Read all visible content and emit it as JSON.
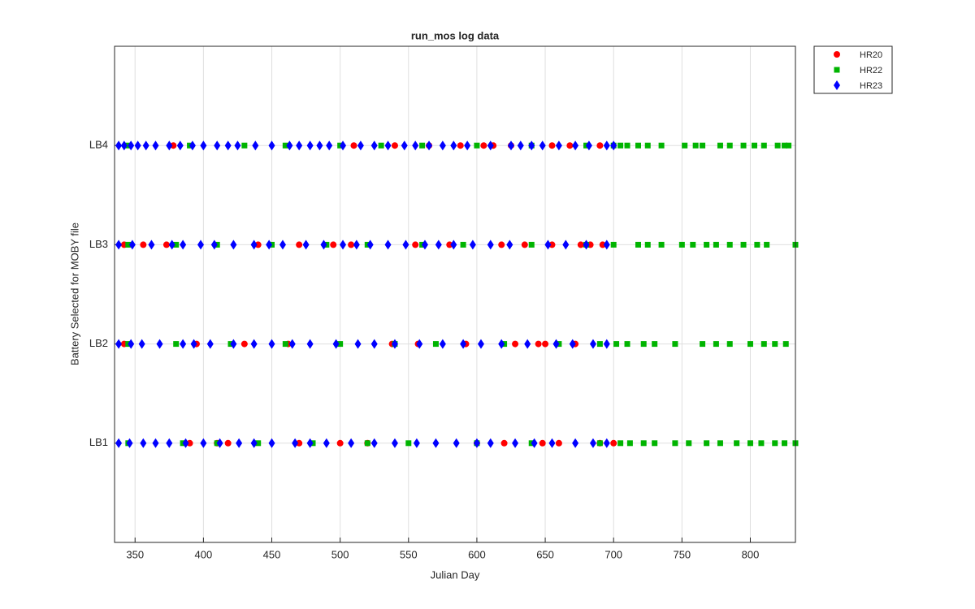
{
  "chart_data": {
    "type": "scatter",
    "title": "run_mos log data",
    "xlabel": "Julian Day",
    "ylabel": "Battery Selected for MOBY file",
    "xlim": [
      335,
      833
    ],
    "xticks": [
      350,
      400,
      450,
      500,
      550,
      600,
      650,
      700,
      750,
      800
    ],
    "ylim": [
      0,
      5
    ],
    "yticks": [
      {
        "value": 1,
        "label": "LB1"
      },
      {
        "value": 2,
        "label": "LB2"
      },
      {
        "value": 3,
        "label": "LB3"
      },
      {
        "value": 4,
        "label": "LB4"
      }
    ],
    "grid": true,
    "legend": "northeastoutside",
    "series": [
      {
        "name": "HR20",
        "color": "#ff0000",
        "marker": "circle",
        "x": [
          378,
          510,
          540,
          565,
          588,
          605,
          612,
          625,
          655,
          668,
          690,
          342,
          356,
          373,
          440,
          470,
          495,
          508,
          555,
          580,
          618,
          635,
          655,
          676,
          683,
          692,
          342,
          395,
          430,
          462,
          538,
          557,
          592,
          628,
          645,
          650,
          672,
          390,
          410,
          418,
          470,
          500,
          520,
          600,
          620,
          648,
          660,
          690,
          700
        ],
        "values": [
          4,
          4,
          4,
          4,
          4,
          4,
          4,
          4,
          4,
          4,
          4,
          3,
          3,
          3,
          3,
          3,
          3,
          3,
          3,
          3,
          3,
          3,
          3,
          3,
          3,
          3,
          2,
          2,
          2,
          2,
          2,
          2,
          2,
          2,
          2,
          2,
          2,
          1,
          1,
          1,
          1,
          1,
          1,
          1,
          1,
          1,
          1,
          1,
          1
        ]
      },
      {
        "name": "HR22",
        "color": "#00b400",
        "marker": "square",
        "x": [
          345,
          390,
          430,
          460,
          500,
          530,
          560,
          600,
          640,
          680,
          700,
          705,
          710,
          718,
          725,
          735,
          752,
          760,
          765,
          778,
          785,
          795,
          803,
          810,
          820,
          825,
          828,
          345,
          380,
          410,
          450,
          490,
          520,
          560,
          590,
          640,
          680,
          700,
          718,
          725,
          735,
          750,
          758,
          768,
          775,
          785,
          795,
          805,
          812,
          833,
          345,
          380,
          420,
          460,
          500,
          540,
          570,
          620,
          660,
          690,
          702,
          710,
          722,
          730,
          745,
          765,
          775,
          785,
          800,
          810,
          818,
          826,
          345,
          385,
          410,
          440,
          480,
          520,
          550,
          600,
          640,
          690,
          705,
          712,
          722,
          730,
          745,
          755,
          768,
          778,
          790,
          800,
          808,
          818,
          825,
          833
        ],
        "values": [
          4,
          4,
          4,
          4,
          4,
          4,
          4,
          4,
          4,
          4,
          4,
          4,
          4,
          4,
          4,
          4,
          4,
          4,
          4,
          4,
          4,
          4,
          4,
          4,
          4,
          4,
          4,
          3,
          3,
          3,
          3,
          3,
          3,
          3,
          3,
          3,
          3,
          3,
          3,
          3,
          3,
          3,
          3,
          3,
          3,
          3,
          3,
          3,
          3,
          3,
          2,
          2,
          2,
          2,
          2,
          2,
          2,
          2,
          2,
          2,
          2,
          2,
          2,
          2,
          2,
          2,
          2,
          2,
          2,
          2,
          2,
          2,
          1,
          1,
          1,
          1,
          1,
          1,
          1,
          1,
          1,
          1,
          1,
          1,
          1,
          1,
          1,
          1,
          1,
          1,
          1,
          1,
          1,
          1,
          1,
          1
        ]
      },
      {
        "name": "HR23",
        "color": "#0000ff",
        "marker": "diamond",
        "x": [
          338,
          342,
          347,
          352,
          358,
          365,
          375,
          383,
          392,
          400,
          410,
          418,
          425,
          438,
          450,
          463,
          470,
          478,
          485,
          492,
          502,
          515,
          525,
          535,
          547,
          555,
          565,
          575,
          583,
          593,
          610,
          625,
          632,
          640,
          648,
          660,
          672,
          682,
          695,
          700,
          338,
          348,
          362,
          377,
          385,
          398,
          408,
          422,
          437,
          448,
          458,
          475,
          488,
          502,
          512,
          522,
          535,
          548,
          562,
          572,
          583,
          597,
          610,
          624,
          652,
          665,
          680,
          695,
          338,
          347,
          355,
          368,
          385,
          393,
          405,
          422,
          437,
          450,
          465,
          478,
          497,
          513,
          525,
          540,
          558,
          575,
          590,
          603,
          618,
          637,
          658,
          670,
          685,
          695,
          338,
          346,
          356,
          365,
          375,
          387,
          400,
          412,
          426,
          437,
          450,
          467,
          478,
          490,
          508,
          525,
          540,
          556,
          570,
          585,
          600,
          610,
          628,
          642,
          655,
          672,
          685,
          695
        ],
        "values": [
          4,
          4,
          4,
          4,
          4,
          4,
          4,
          4,
          4,
          4,
          4,
          4,
          4,
          4,
          4,
          4,
          4,
          4,
          4,
          4,
          4,
          4,
          4,
          4,
          4,
          4,
          4,
          4,
          4,
          4,
          4,
          4,
          4,
          4,
          4,
          4,
          4,
          4,
          4,
          4,
          3,
          3,
          3,
          3,
          3,
          3,
          3,
          3,
          3,
          3,
          3,
          3,
          3,
          3,
          3,
          3,
          3,
          3,
          3,
          3,
          3,
          3,
          3,
          3,
          3,
          3,
          3,
          3,
          2,
          2,
          2,
          2,
          2,
          2,
          2,
          2,
          2,
          2,
          2,
          2,
          2,
          2,
          2,
          2,
          2,
          2,
          2,
          2,
          2,
          2,
          2,
          2,
          2,
          2,
          1,
          1,
          1,
          1,
          1,
          1,
          1,
          1,
          1,
          1,
          1,
          1,
          1,
          1,
          1,
          1,
          1,
          1,
          1,
          1,
          1,
          1,
          1,
          1,
          1,
          1,
          1,
          1
        ]
      }
    ]
  }
}
